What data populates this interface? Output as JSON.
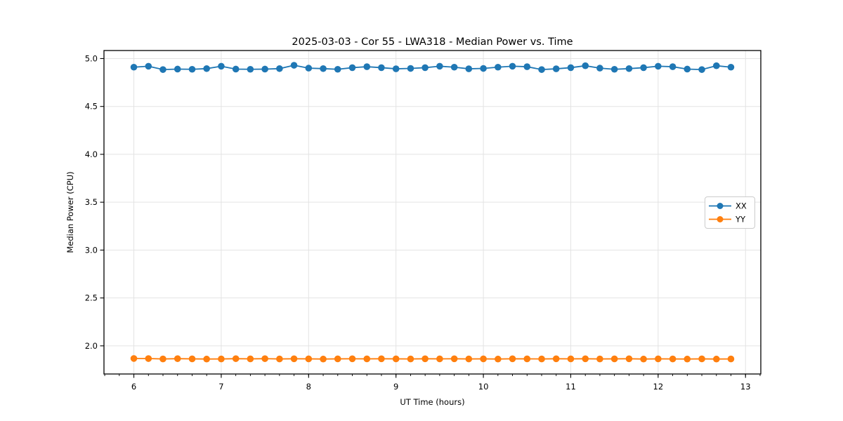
{
  "figure": {
    "background": "#ffffff",
    "frame_color": "#000000",
    "grid_color": "#e3e3e3",
    "tick_color": "#000000"
  },
  "chart_data": {
    "type": "line",
    "title": "2025-03-03 - Cor 55 - LWA318 - Median Power vs. Time",
    "xlabel": "UT Time (hours)",
    "ylabel": "Median Power (CPU)",
    "xlim": [
      5.658,
      13.175
    ],
    "ylim": [
      1.706,
      5.084
    ],
    "grid": "major",
    "legend_position": "center right",
    "xticks": {
      "values": [
        6,
        7,
        8,
        9,
        10,
        11,
        12,
        13
      ],
      "labels": [
        "6",
        "7",
        "8",
        "9",
        "10",
        "11",
        "12",
        "13"
      ],
      "minor_step": 0.166667
    },
    "yticks": {
      "values": [
        2.0,
        2.5,
        3.0,
        3.5,
        4.0,
        4.5,
        5.0
      ],
      "labels": [
        "2.0",
        "2.5",
        "3.0",
        "3.5",
        "4.0",
        "4.5",
        "5.0"
      ]
    },
    "x": [
      6.0,
      6.167,
      6.333,
      6.5,
      6.667,
      6.833,
      7.0,
      7.167,
      7.333,
      7.5,
      7.667,
      7.833,
      8.0,
      8.167,
      8.333,
      8.5,
      8.667,
      8.833,
      9.0,
      9.167,
      9.333,
      9.5,
      9.667,
      9.833,
      10.0,
      10.167,
      10.333,
      10.5,
      10.667,
      10.833,
      11.0,
      11.167,
      11.333,
      11.5,
      11.667,
      11.833,
      12.0,
      12.167,
      12.333,
      12.5,
      12.667,
      12.833
    ],
    "series": [
      {
        "name": "XX",
        "color": "#1f77b4",
        "values": [
          4.91,
          4.92,
          4.885,
          4.89,
          4.888,
          4.895,
          4.92,
          4.89,
          4.888,
          4.89,
          4.895,
          4.93,
          4.9,
          4.895,
          4.888,
          4.905,
          4.915,
          4.905,
          4.893,
          4.897,
          4.905,
          4.92,
          4.91,
          4.893,
          4.897,
          4.91,
          4.92,
          4.915,
          4.885,
          4.893,
          4.905,
          4.925,
          4.9,
          4.888,
          4.895,
          4.905,
          4.92,
          4.915,
          4.89,
          4.885,
          4.925,
          4.91
        ]
      },
      {
        "name": "YY",
        "color": "#ff7f0e",
        "values": [
          1.868,
          1.867,
          1.863,
          1.866,
          1.864,
          1.862,
          1.863,
          1.866,
          1.864,
          1.866,
          1.863,
          1.865,
          1.864,
          1.862,
          1.864,
          1.865,
          1.864,
          1.865,
          1.864,
          1.863,
          1.865,
          1.864,
          1.865,
          1.863,
          1.864,
          1.862,
          1.865,
          1.864,
          1.863,
          1.865,
          1.864,
          1.865,
          1.863,
          1.864,
          1.865,
          1.862,
          1.864,
          1.863,
          1.862,
          1.864,
          1.862,
          1.863
        ]
      }
    ]
  }
}
